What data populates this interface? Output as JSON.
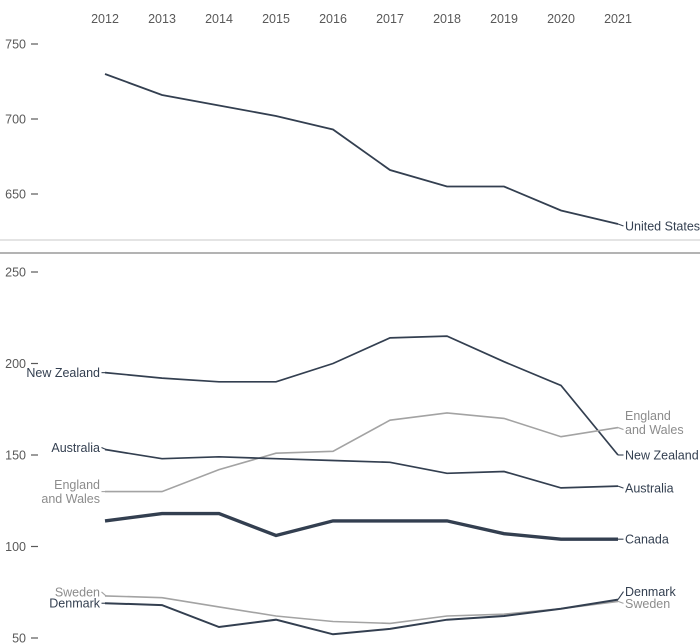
{
  "chart_data": {
    "type": "line",
    "title": "",
    "x_labels": [
      "2012",
      "2013",
      "2014",
      "2015",
      "2016",
      "2017",
      "2018",
      "2019",
      "2020",
      "2021"
    ],
    "grid": false,
    "legend_position": "direct-line-labels",
    "colors": {
      "dark": "#333F50",
      "gray": "#A3A3A3",
      "gray_label": "#8C8C8C",
      "axis_text": "#595959",
      "separator_top": "#C9C9C9",
      "separator_bottom": "#9A9A9A"
    },
    "panels": [
      {
        "id": "top",
        "yticks": [
          750,
          700,
          650
        ],
        "ylim": [
          625,
          755
        ],
        "series": [
          {
            "name": "United States",
            "color_role": "dark",
            "emphasis": false,
            "right_label": "United States",
            "values": [
              730,
              716,
              709,
              702,
              693,
              666,
              655,
              655,
              639,
              630
            ]
          }
        ]
      },
      {
        "id": "bottom",
        "yticks": [
          250,
          200,
          150,
          100,
          50
        ],
        "ylim": [
          48,
          252
        ],
        "series": [
          {
            "name": "New Zealand",
            "color_role": "dark",
            "emphasis": false,
            "left_label": "New Zealand",
            "right_label": "New Zealand",
            "values": [
              195,
              192,
              190,
              190,
              200,
              214,
              215,
              201,
              188,
              150
            ]
          },
          {
            "name": "England and Wales",
            "color_role": "gray",
            "emphasis": false,
            "left_label": "England\nand Wales",
            "right_label": "England\nand Wales",
            "values": [
              130,
              130,
              142,
              151,
              152,
              169,
              173,
              170,
              160,
              165
            ]
          },
          {
            "name": "Australia",
            "color_role": "dark",
            "emphasis": false,
            "left_label": "Australia",
            "right_label": "Australia",
            "values": [
              153,
              148,
              149,
              148,
              147,
              146,
              140,
              141,
              132,
              133
            ]
          },
          {
            "name": "Canada",
            "color_role": "dark",
            "emphasis": true,
            "right_label": "Canada",
            "values": [
              114,
              118,
              118,
              106,
              114,
              114,
              114,
              107,
              104,
              104
            ]
          },
          {
            "name": "Sweden",
            "color_role": "gray",
            "emphasis": false,
            "left_label": "Sweden",
            "right_label": "Sweden",
            "values": [
              73,
              72,
              67,
              62,
              59,
              58,
              62,
              63,
              66,
              70
            ]
          },
          {
            "name": "Denmark",
            "color_role": "dark",
            "emphasis": false,
            "left_label": "Denmark",
            "right_label": "Denmark",
            "values": [
              69,
              68,
              56,
              60,
              52,
              55,
              60,
              62,
              66,
              71
            ]
          }
        ]
      }
    ]
  }
}
